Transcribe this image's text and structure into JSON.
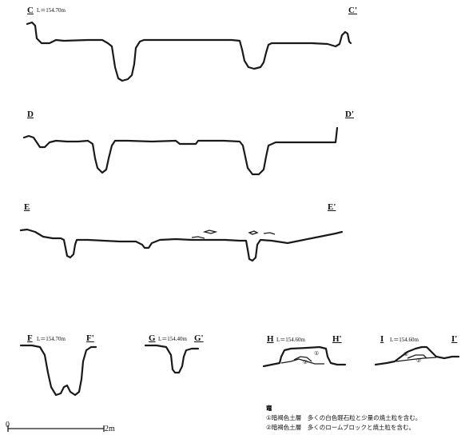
{
  "sections": [
    {
      "id": "C",
      "start": "C",
      "end": "C'",
      "level": "L＝154.70m"
    },
    {
      "id": "D",
      "start": "D",
      "end": "D'",
      "level": ""
    },
    {
      "id": "E",
      "start": "E",
      "end": "E'",
      "level": ""
    },
    {
      "id": "F",
      "start": "F",
      "end": "F'",
      "level": "L＝154.70m"
    },
    {
      "id": "G",
      "start": "G",
      "end": "G'",
      "level": "L＝154.40m"
    },
    {
      "id": "H",
      "start": "H",
      "end": "H'",
      "level": "L＝154.60m"
    },
    {
      "id": "I",
      "start": "I",
      "end": "I'",
      "level": "L＝154.60m"
    }
  ],
  "layer_marks": [
    "①",
    "②"
  ],
  "legend": {
    "header": "竈",
    "items": [
      "①暗褐色土層　多くの白色軽石粒と少量の焼土粒を含む。",
      "②暗褐色土層　多くのロームブロックと焼土粒を含む。"
    ]
  },
  "scale": {
    "start": "0",
    "end": "2m"
  }
}
